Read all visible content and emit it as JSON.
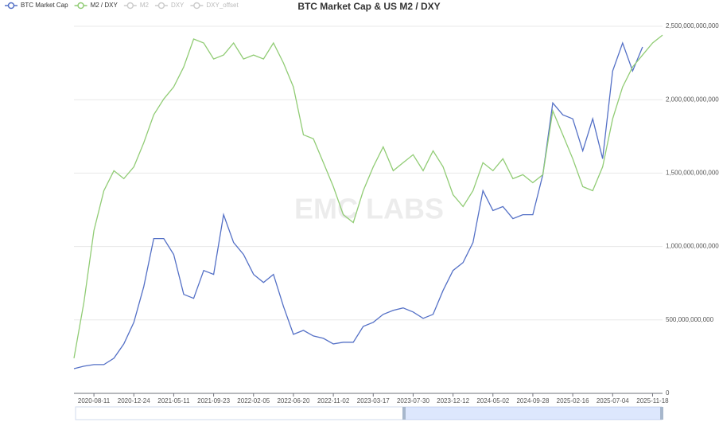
{
  "chart_data": {
    "type": "line",
    "title": "BTC Market Cap & US M2 / DXY",
    "watermark": "EMC LABS",
    "categories": [
      null,
      null,
      "2020-08-11",
      null,
      null,
      null,
      "2020-12-24",
      null,
      null,
      null,
      "2021-05-11",
      null,
      null,
      null,
      "2021-09-23",
      null,
      null,
      null,
      "2022-02-05",
      null,
      null,
      null,
      "2022-06-20",
      null,
      null,
      null,
      "2022-11-02",
      null,
      null,
      null,
      "2023-03-17",
      null,
      null,
      null,
      "2023-07-30",
      null,
      null,
      null,
      "2023-12-12",
      null,
      null,
      null,
      "2024-05-02",
      null,
      null,
      null,
      "2024-09-28",
      null,
      null,
      null,
      "2025-02-16",
      null,
      null,
      null,
      "2025-07-04",
      null,
      null,
      null,
      "2025-11-18",
      null
    ],
    "series": [
      {
        "name": "BTC Market Cap",
        "color": "#5470c6",
        "values": [
          168000000000.0,
          185000000000.0,
          196000000000.0,
          196000000000.0,
          239000000000.0,
          337000000000.0,
          484000000000.0,
          728000000000.0,
          1054000000000.0,
          1054000000000.0,
          946000000000.0,
          674000000000.0,
          647000000000.0,
          837000000000.0,
          810000000000.0,
          1217000000000.0,
          1027000000000.0,
          946000000000.0,
          810000000000.0,
          755000000000.0,
          810000000000.0,
          592000000000.0,
          402000000000.0,
          429000000000.0,
          391000000000.0,
          375000000000.0,
          337000000000.0,
          348000000000.0,
          348000000000.0,
          456000000000.0,
          484000000000.0,
          538000000000.0,
          565000000000.0,
          582000000000.0,
          554000000000.0,
          511000000000.0,
          538000000000.0,
          701000000000.0,
          837000000000.0,
          891000000000.0,
          1027000000000.0,
          1380000000000.0,
          1245000000000.0,
          1272000000000.0,
          1190000000000.0,
          1217000000000.0,
          1217000000000.0,
          1489000000000.0,
          1978000000000.0,
          1897000000000.0,
          1870000000000.0,
          1652000000000.0,
          1870000000000.0,
          1598000000000.0,
          2196000000000.0,
          2386000000000.0,
          2196000000000.0,
          2359000000000.0,
          null,
          null
        ]
      },
      {
        "name": "M2 / DXY",
        "color": "#91cc75",
        "values": [
          239000000000.0,
          620000000000.0,
          1109000000000.0,
          1380000000000.0,
          1516000000000.0,
          1462000000000.0,
          1543000000000.0,
          1707000000000.0,
          1897000000000.0,
          2005000000000.0,
          2087000000000.0,
          2223000000000.0,
          2413000000000.0,
          2386000000000.0,
          2277000000000.0,
          2304000000000.0,
          2386000000000.0,
          2277000000000.0,
          2304000000000.0,
          2277000000000.0,
          2386000000000.0,
          2250000000000.0,
          2087000000000.0,
          1761000000000.0,
          1734000000000.0,
          1571000000000.0,
          1408000000000.0,
          1217000000000.0,
          1163000000000.0,
          1380000000000.0,
          1543000000000.0,
          1679000000000.0,
          1516000000000.0,
          1571000000000.0,
          1625000000000.0,
          1516000000000.0,
          1652000000000.0,
          1543000000000.0,
          1353000000000.0,
          1272000000000.0,
          1380000000000.0,
          1571000000000.0,
          1516000000000.0,
          1598000000000.0,
          1462000000000.0,
          1489000000000.0,
          1435000000000.0,
          1489000000000.0,
          1924000000000.0,
          1761000000000.0,
          1598000000000.0,
          1408000000000.0,
          1380000000000.0,
          1543000000000.0,
          1870000000000.0,
          2087000000000.0,
          2223000000000.0,
          2304000000000.0,
          2386000000000.0,
          2440000000000.0
        ]
      }
    ],
    "inactive_legend": [
      "M2",
      "DXY",
      "DXY_offset"
    ],
    "ylim": [
      0,
      2500000000000
    ],
    "yticks": [
      0,
      {
        "value": 500000000000,
        "label": "500,000,000,000"
      },
      {
        "value": 1000000000000,
        "label": "1,000,000,000,000"
      },
      {
        "value": 1500000000000,
        "label": "1,500,000,000,000"
      },
      {
        "value": 2000000000000,
        "label": "2,000,000,000,000"
      },
      {
        "value": 2500000000000,
        "label": "2,500,000,000,000"
      }
    ],
    "grid": true
  }
}
